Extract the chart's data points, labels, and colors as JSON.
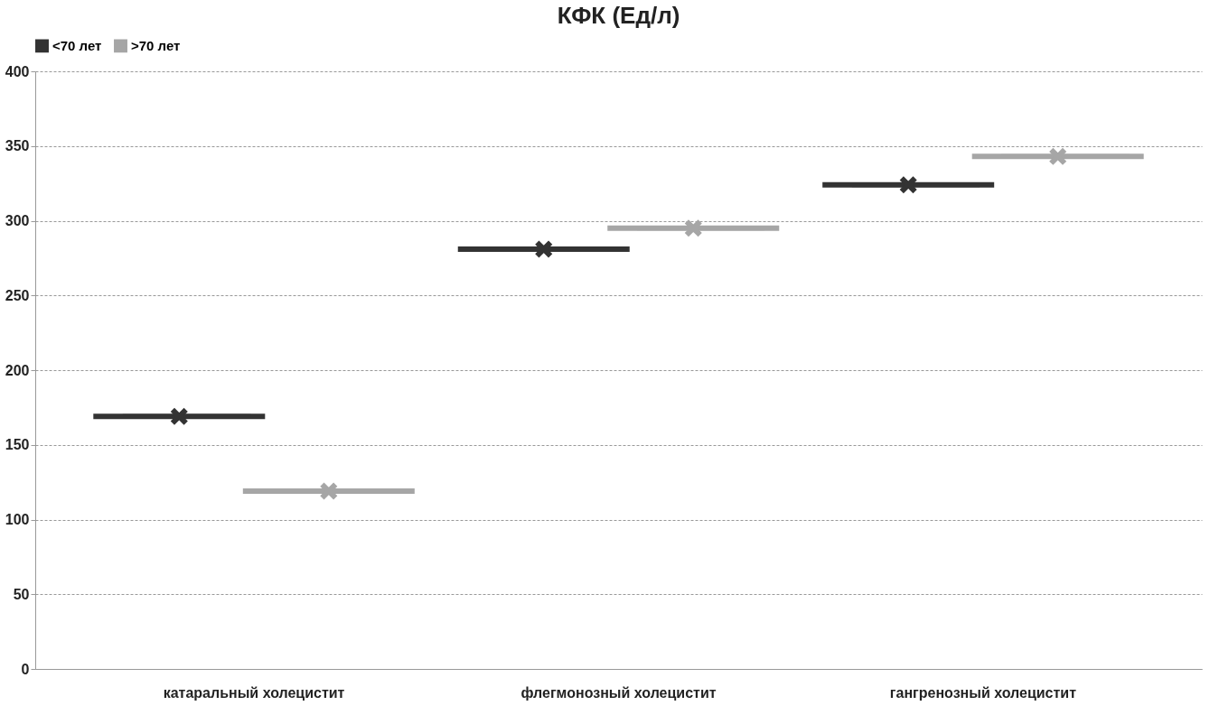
{
  "chart_data": {
    "type": "box",
    "title": "КФК (Ед/л)",
    "categories": [
      "катаральный холецистит",
      "флегмонозный холецистит",
      "гангренозный холецистит"
    ],
    "series": [
      {
        "name": "<70 лет",
        "color": "#333333",
        "boxes": [
          {
            "low": 169,
            "q1": 169,
            "median": 169,
            "q3": 169,
            "high": 169,
            "mean": 169
          },
          {
            "low": 281,
            "q1": 281,
            "median": 281,
            "q3": 281,
            "high": 281,
            "mean": 281
          },
          {
            "low": 324,
            "q1": 324,
            "median": 324,
            "q3": 324,
            "high": 324,
            "mean": 324
          }
        ]
      },
      {
        "name": ">70 лет",
        "color": "#a6a6a6",
        "boxes": [
          {
            "low": 119,
            "q1": 119,
            "median": 119,
            "q3": 119,
            "high": 119,
            "mean": 119
          },
          {
            "low": 295,
            "q1": 295,
            "median": 295,
            "q3": 295,
            "high": 295,
            "mean": 295
          },
          {
            "low": 343,
            "q1": 343,
            "median": 343,
            "q3": 343,
            "high": 343,
            "mean": 343
          }
        ]
      }
    ],
    "ylim": [
      0,
      400
    ],
    "yticks": [
      0,
      50,
      100,
      150,
      200,
      250,
      300,
      350,
      400
    ],
    "grid": "y",
    "legend": "top",
    "marker": "cross"
  }
}
